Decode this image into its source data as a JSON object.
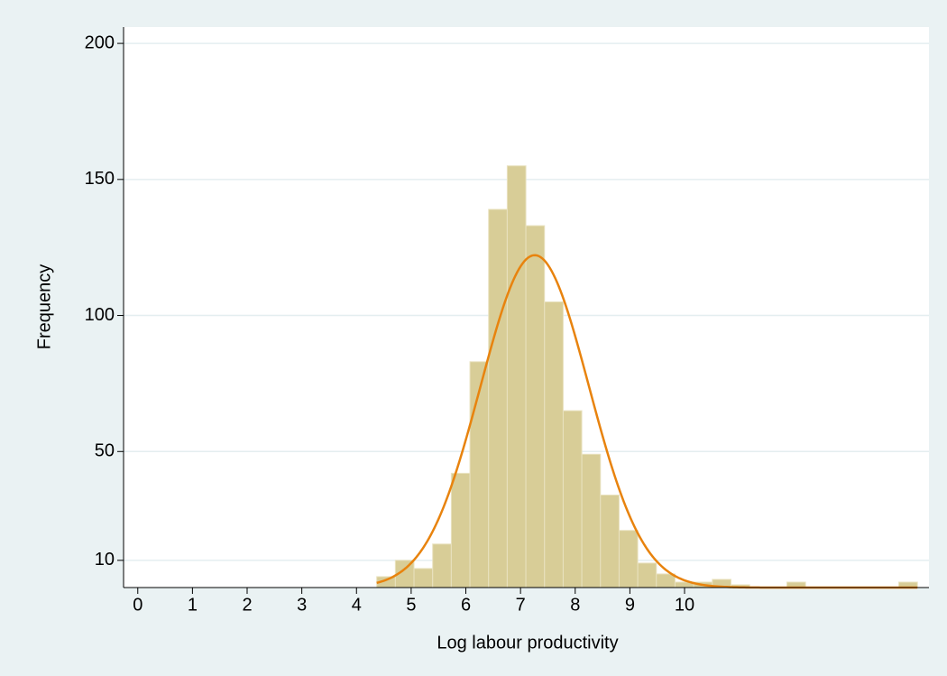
{
  "chart_data": {
    "type": "histogram",
    "xlabel": "Log labour productivity",
    "ylabel": "Frequency",
    "bins": [
      4.37,
      4.711,
      5.052,
      5.393,
      5.734,
      6.075,
      6.416,
      6.757,
      7.098,
      7.439,
      7.78,
      8.121,
      8.462,
      8.803,
      9.144,
      9.485,
      9.826,
      10.167,
      10.508,
      10.849,
      11.19,
      11.531,
      11.872,
      12.213,
      12.554,
      12.895,
      13.236,
      13.577,
      13.918,
      14.259
    ],
    "counts": [
      4,
      10,
      7,
      16,
      42,
      83,
      139,
      155,
      133,
      105,
      65,
      49,
      34,
      21,
      9,
      5,
      2,
      2,
      3,
      1,
      0,
      0,
      2,
      0,
      0,
      0,
      0,
      0,
      2
    ],
    "color": "#d8cd97",
    "normal": {
      "mean": 7.26,
      "sd": 0.99,
      "color": "#e8830e"
    },
    "xlim": [
      -0.26,
      14.47
    ],
    "ylim": [
      0,
      206
    ],
    "xticks": [
      0,
      1,
      2,
      3,
      4,
      5,
      6,
      7,
      8,
      9,
      10
    ],
    "yticks": [
      10,
      50,
      100,
      150,
      200
    ],
    "grid": true
  }
}
